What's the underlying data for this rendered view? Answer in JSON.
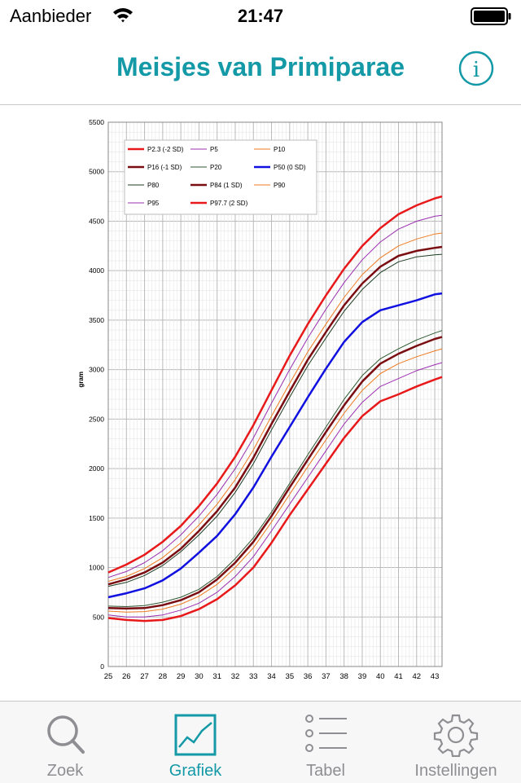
{
  "status": {
    "carrier": "Aanbieder",
    "time": "21:47"
  },
  "header": {
    "title": "Meisjes van Primiparae",
    "info_icon": "info-circle-icon",
    "accent": "#1499a7"
  },
  "chart_data": {
    "type": "line",
    "xlabel": "",
    "ylabel": "gram",
    "xlim": [
      25,
      43.4
    ],
    "ylim": [
      0,
      5500
    ],
    "x_ticks": [
      "25",
      "26",
      "27",
      "28",
      "29",
      "30",
      "31",
      "32",
      "33",
      "34",
      "35",
      "36",
      "37",
      "38",
      "39",
      "40",
      "41",
      "42",
      "43"
    ],
    "y_ticks": [
      "0",
      "500",
      "1000",
      "1500",
      "2000",
      "2500",
      "3000",
      "3500",
      "4000",
      "4500",
      "5000",
      "5500"
    ],
    "grid": true,
    "legend_position": "top-left",
    "x": [
      25,
      26,
      27,
      28,
      29,
      30,
      31,
      32,
      33,
      34,
      35,
      36,
      37,
      38,
      39,
      40,
      41,
      42,
      43,
      43.4
    ],
    "series": [
      {
        "name": "P2.3 (-2 SD)",
        "color": "#e8191b",
        "width": 2.5,
        "values": [
          490,
          470,
          460,
          470,
          510,
          580,
          680,
          820,
          1000,
          1250,
          1530,
          1790,
          2050,
          2310,
          2530,
          2680,
          2750,
          2830,
          2900,
          2925
        ]
      },
      {
        "name": "P5",
        "color": "#9b2fb0",
        "width": 1,
        "values": [
          520,
          500,
          500,
          520,
          570,
          640,
          750,
          910,
          1110,
          1370,
          1640,
          1910,
          2180,
          2450,
          2670,
          2830,
          2910,
          2990,
          3050,
          3070
        ]
      },
      {
        "name": "P10",
        "color": "#ef7a20",
        "width": 1,
        "values": [
          560,
          550,
          555,
          580,
          630,
          710,
          830,
          1000,
          1200,
          1460,
          1740,
          2020,
          2290,
          2560,
          2790,
          2960,
          3060,
          3130,
          3190,
          3210
        ]
      },
      {
        "name": "P16 (-1 SD)",
        "color": "#7a0d12",
        "width": 2.5,
        "values": [
          590,
          585,
          590,
          620,
          670,
          750,
          880,
          1050,
          1260,
          1520,
          1810,
          2090,
          2370,
          2640,
          2880,
          3060,
          3160,
          3240,
          3310,
          3330
        ]
      },
      {
        "name": "P20",
        "color": "#2e5a32",
        "width": 1,
        "values": [
          610,
          605,
          615,
          650,
          700,
          780,
          910,
          1090,
          1300,
          1560,
          1850,
          2140,
          2420,
          2700,
          2940,
          3110,
          3210,
          3300,
          3370,
          3395
        ]
      },
      {
        "name": "P50 (0 SD)",
        "color": "#1010e0",
        "width": 2.5,
        "values": [
          700,
          740,
          790,
          870,
          990,
          1150,
          1320,
          1540,
          1810,
          2120,
          2420,
          2720,
          3010,
          3280,
          3480,
          3600,
          3650,
          3700,
          3760,
          3770
        ]
      },
      {
        "name": "P80",
        "color": "#1e3d22",
        "width": 1,
        "values": [
          810,
          850,
          920,
          1020,
          1160,
          1330,
          1520,
          1760,
          2050,
          2390,
          2720,
          3040,
          3320,
          3590,
          3810,
          3980,
          4090,
          4140,
          4160,
          4165
        ]
      },
      {
        "name": "P84 (1 SD)",
        "color": "#7a0d12",
        "width": 2.5,
        "values": [
          830,
          880,
          950,
          1050,
          1190,
          1370,
          1570,
          1810,
          2110,
          2450,
          2780,
          3100,
          3380,
          3650,
          3870,
          4040,
          4150,
          4200,
          4230,
          4240
        ]
      },
      {
        "name": "P90",
        "color": "#ef7a20",
        "width": 1,
        "values": [
          860,
          910,
          990,
          1100,
          1250,
          1430,
          1640,
          1890,
          2190,
          2530,
          2860,
          3180,
          3460,
          3730,
          3960,
          4130,
          4250,
          4320,
          4370,
          4380
        ]
      },
      {
        "name": "P95",
        "color": "#9b2fb0",
        "width": 1,
        "values": [
          900,
          960,
          1050,
          1170,
          1330,
          1520,
          1740,
          2000,
          2310,
          2660,
          3000,
          3320,
          3610,
          3880,
          4110,
          4290,
          4420,
          4500,
          4550,
          4560
        ]
      },
      {
        "name": "P97.7 (2 SD)",
        "color": "#e8191b",
        "width": 2.5,
        "values": [
          950,
          1030,
          1130,
          1260,
          1420,
          1620,
          1850,
          2120,
          2440,
          2790,
          3140,
          3460,
          3750,
          4020,
          4250,
          4430,
          4570,
          4660,
          4730,
          4750
        ]
      }
    ]
  },
  "tabs": [
    {
      "label": "Zoek",
      "icon": "search-icon",
      "active": false
    },
    {
      "label": "Grafiek",
      "icon": "chart-icon",
      "active": true
    },
    {
      "label": "Tabel",
      "icon": "list-icon",
      "active": false
    },
    {
      "label": "Instellingen",
      "icon": "gear-icon",
      "active": false
    }
  ]
}
